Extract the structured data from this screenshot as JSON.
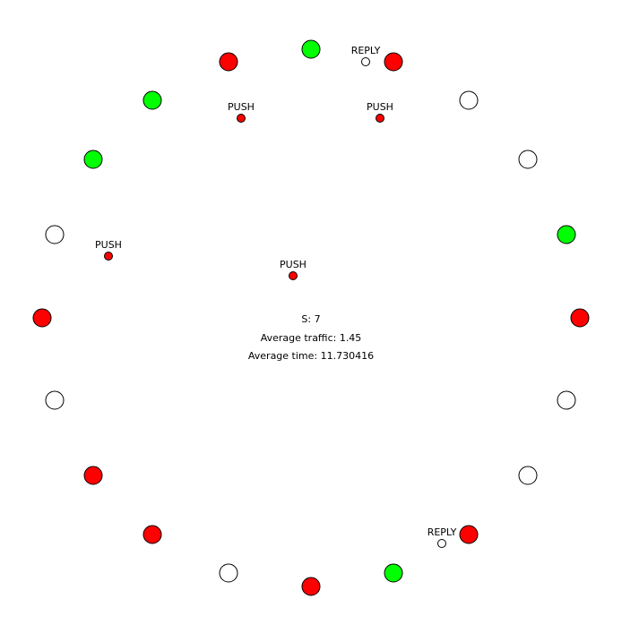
{
  "colors": {
    "red": "#ff0000",
    "green": "#00ff00",
    "white": "#ffffff",
    "background": "#ffffff",
    "stroke": "#000000"
  },
  "nodes": [
    {
      "id": "n1",
      "state": "green"
    },
    {
      "id": "n2",
      "state": "red"
    },
    {
      "id": "n3",
      "state": "white"
    },
    {
      "id": "n4",
      "state": "white"
    },
    {
      "id": "n5",
      "state": "green"
    },
    {
      "id": "n6",
      "state": "red"
    },
    {
      "id": "n7",
      "state": "white"
    },
    {
      "id": "n8",
      "state": "white"
    },
    {
      "id": "n9",
      "state": "red"
    },
    {
      "id": "n10",
      "state": "green"
    },
    {
      "id": "n11",
      "state": "red"
    },
    {
      "id": "n12",
      "state": "white"
    },
    {
      "id": "n13",
      "state": "red"
    },
    {
      "id": "n14",
      "state": "red"
    },
    {
      "id": "n15",
      "state": "white"
    },
    {
      "id": "n16",
      "state": "red"
    },
    {
      "id": "n17",
      "state": "white"
    },
    {
      "id": "n18",
      "state": "green"
    },
    {
      "id": "n19",
      "state": "green"
    },
    {
      "id": "n20",
      "state": "red"
    }
  ],
  "messages": [
    {
      "id": "m1",
      "type": "PUSH",
      "state": "red"
    },
    {
      "id": "m2",
      "type": "PUSH",
      "state": "red"
    },
    {
      "id": "m3",
      "type": "PUSH",
      "state": "red"
    },
    {
      "id": "m4",
      "type": "PUSH",
      "state": "red"
    },
    {
      "id": "m5",
      "type": "REPLY",
      "state": "white"
    },
    {
      "id": "m6",
      "type": "REPLY",
      "state": "white"
    }
  ],
  "stats": {
    "s_label": "S: 7",
    "traffic_label": "Average traffic: 1.45",
    "time_label": "Average time: 11.730416"
  }
}
